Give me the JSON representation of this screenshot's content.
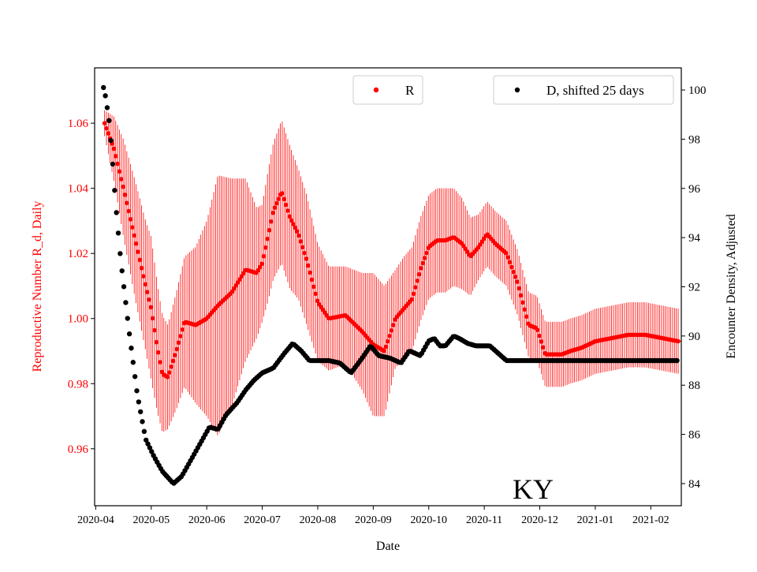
{
  "chart_data": {
    "type": "scatter",
    "state_label": "KY",
    "xlabel": "Date",
    "ylabel_left": "Reproductive Number R_d, Daily",
    "ylabel_right": "Encounter Density, Adjusted",
    "x_ticks": [
      "2020-04",
      "2020-05",
      "2020-06",
      "2020-07",
      "2020-08",
      "2020-09",
      "2020-10",
      "2020-11",
      "2020-12",
      "2021-01",
      "2021-02"
    ],
    "x_range_months": [
      -0.02,
      10.55
    ],
    "y_left_ticks": [
      "0.96",
      "0.98",
      "1.00",
      "1.02",
      "1.04",
      "1.06"
    ],
    "y_left_range": [
      0.9425,
      1.077
    ],
    "y_right_ticks": [
      "84",
      "86",
      "88",
      "90",
      "92",
      "94",
      "96",
      "98",
      "100"
    ],
    "y_right_range": [
      83.1,
      100.9
    ],
    "legend": {
      "r_label": "R",
      "d_label": "D, shifted 25 days"
    },
    "colors": {
      "r": "#ff0000",
      "d": "#000000",
      "axis_left_text": "#ff0000"
    },
    "r_series": {
      "name": "R",
      "x_months": [
        0.16,
        0.33,
        0.5,
        0.7,
        0.9,
        1.0,
        1.1,
        1.2,
        1.3,
        1.45,
        1.6,
        1.8,
        2.0,
        2.2,
        2.45,
        2.7,
        2.9,
        3.0,
        3.1,
        3.2,
        3.35,
        3.5,
        3.65,
        3.8,
        4.0,
        4.2,
        4.5,
        4.8,
        5.0,
        5.2,
        5.4,
        5.55,
        5.7,
        5.85,
        6.0,
        6.15,
        6.3,
        6.45,
        6.6,
        6.75,
        6.9,
        7.05,
        7.2,
        7.4,
        7.6,
        7.8,
        7.95,
        8.1,
        8.25,
        8.4,
        8.55,
        8.75,
        9.0,
        9.3,
        9.6,
        9.9,
        10.2,
        10.5
      ],
      "y": [
        1.06,
        1.052,
        1.04,
        1.025,
        1.01,
        1.003,
        0.992,
        0.983,
        0.982,
        0.99,
        0.999,
        0.998,
        1.0,
        1.004,
        1.008,
        1.015,
        1.014,
        1.017,
        1.025,
        1.033,
        1.039,
        1.031,
        1.026,
        1.018,
        1.005,
        1.0,
        1.001,
        0.996,
        0.992,
        0.99,
        1.0,
        1.003,
        1.006,
        1.015,
        1.022,
        1.024,
        1.024,
        1.025,
        1.023,
        1.019,
        1.022,
        1.026,
        1.023,
        1.02,
        1.011,
        0.998,
        0.997,
        0.989,
        0.989,
        0.989,
        0.99,
        0.991,
        0.993,
        0.994,
        0.995,
        0.995,
        0.994,
        0.993
      ],
      "err": [
        0.004,
        0.01,
        0.015,
        0.018,
        0.02,
        0.022,
        0.02,
        0.018,
        0.016,
        0.018,
        0.02,
        0.024,
        0.03,
        0.04,
        0.035,
        0.028,
        0.02,
        0.018,
        0.02,
        0.021,
        0.022,
        0.022,
        0.02,
        0.02,
        0.018,
        0.016,
        0.015,
        0.018,
        0.022,
        0.02,
        0.015,
        0.016,
        0.016,
        0.016,
        0.016,
        0.016,
        0.016,
        0.015,
        0.014,
        0.012,
        0.01,
        0.01,
        0.01,
        0.01,
        0.01,
        0.01,
        0.01,
        0.01,
        0.01,
        0.01,
        0.01,
        0.01,
        0.01,
        0.01,
        0.01,
        0.01,
        0.01,
        0.01
      ]
    },
    "d_series": {
      "name": "D, shifted 25 days",
      "x_months": [
        0.14,
        0.18,
        0.25,
        0.3,
        0.35,
        0.45,
        0.6,
        0.75,
        0.9,
        1.05,
        1.2,
        1.4,
        1.55,
        1.65,
        1.8,
        1.95,
        2.05,
        2.2,
        2.35,
        2.55,
        2.7,
        2.85,
        3.0,
        3.2,
        3.4,
        3.55,
        3.7,
        3.85,
        4.0,
        4.2,
        4.4,
        4.6,
        4.8,
        4.95,
        5.1,
        5.3,
        5.5,
        5.65,
        5.85,
        6.0,
        6.1,
        6.2,
        6.3,
        6.45,
        6.55,
        6.7,
        6.85,
        7.0,
        7.1,
        7.25,
        7.4,
        7.6,
        7.75,
        7.9,
        8.05,
        8.2,
        8.5,
        8.8,
        9.1,
        9.4,
        9.7,
        10.0,
        10.3,
        10.5
      ],
      "y": [
        100.1,
        99.7,
        98.6,
        97.2,
        95.6,
        93.1,
        90.2,
        87.6,
        85.8,
        85.1,
        84.5,
        84.0,
        84.3,
        84.7,
        85.3,
        85.9,
        86.3,
        86.2,
        86.8,
        87.3,
        87.8,
        88.2,
        88.5,
        88.7,
        89.3,
        89.7,
        89.4,
        89.0,
        89.0,
        89.0,
        88.9,
        88.5,
        89.1,
        89.6,
        89.2,
        89.1,
        88.9,
        89.4,
        89.2,
        89.8,
        89.9,
        89.6,
        89.6,
        90.0,
        89.9,
        89.7,
        89.6,
        89.6,
        89.6,
        89.3,
        89.0,
        89.0,
        89.0,
        89.0,
        89.0,
        89.0,
        89.0,
        89.0,
        89.0,
        89.0,
        89.0,
        89.0,
        89.0,
        89.0
      ]
    }
  }
}
